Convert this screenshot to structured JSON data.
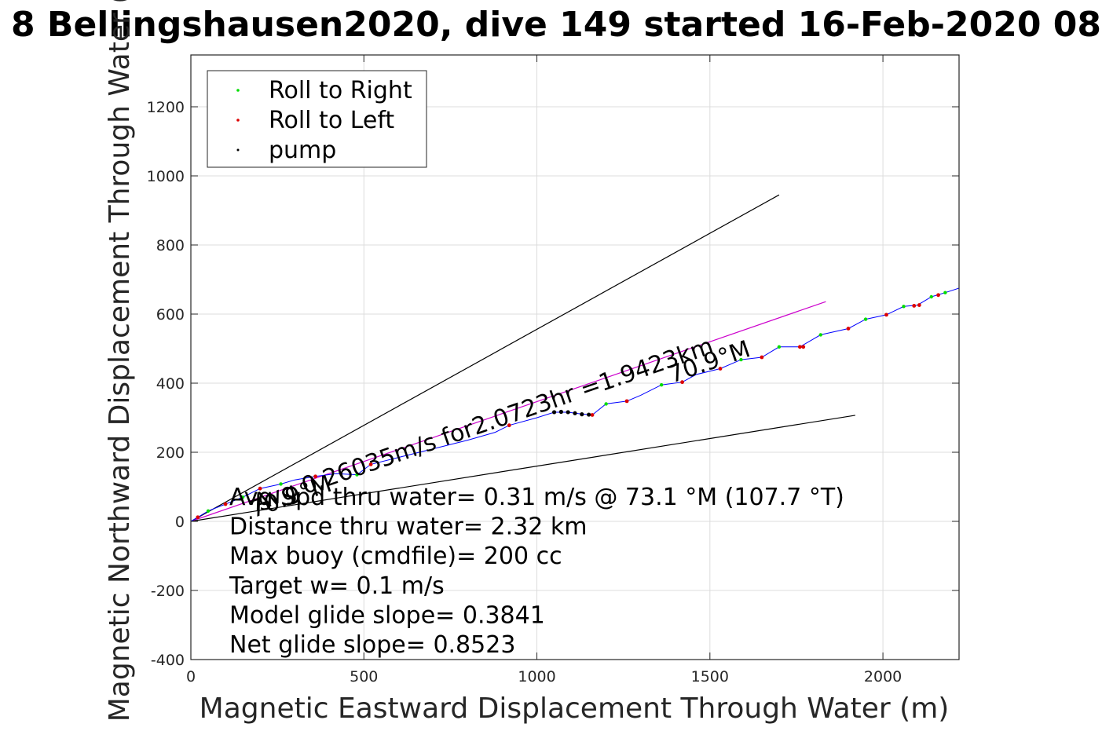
{
  "chart_data": {
    "type": "line",
    "title": "8 Bellingshausen2020, dive 149 started 16-Feb-2020 08",
    "xlabel": "Magnetic Eastward Displacement Through Water (m)",
    "ylabel": "Magnetic Northward Displacement Through Water (",
    "xlim": [
      0,
      2220
    ],
    "ylim": [
      -400,
      1350
    ],
    "xticks": [
      0,
      500,
      1000,
      1500,
      2000
    ],
    "yticks": [
      -400,
      -200,
      0,
      200,
      400,
      600,
      800,
      1000,
      1200
    ],
    "xtick_labels": [
      "0",
      "500",
      "1000",
      "1500",
      "2000"
    ],
    "ytick_labels": [
      "-400",
      "-200",
      "0",
      "200",
      "400",
      "600",
      "800",
      "1000",
      "1200"
    ],
    "grid": true,
    "legend_position": "top-left",
    "legend": [
      {
        "label": "Roll to Right",
        "color": "#00dd00"
      },
      {
        "label": "Roll to Left",
        "color": "#dd0000"
      },
      {
        "label": "pump",
        "color": "#000000"
      }
    ],
    "series": [
      {
        "color": "#0000ff",
        "x": [
          0,
          50,
          100,
          150,
          200,
          260,
          300,
          360,
          420,
          480,
          520,
          600,
          700,
          800,
          880,
          920,
          1000,
          1050,
          1090,
          1120,
          1160,
          1200,
          1260,
          1300,
          1360,
          1420,
          1460,
          1530,
          1590,
          1650,
          1700,
          1760,
          1820,
          1900,
          1950,
          2010,
          2060,
          2100,
          2140,
          2180,
          2220
        ],
        "y": [
          0,
          30,
          50,
          70,
          95,
          108,
          120,
          130,
          138,
          135,
          165,
          185,
          210,
          235,
          258,
          278,
          300,
          316,
          316,
          312,
          308,
          340,
          348,
          365,
          395,
          403,
          425,
          442,
          468,
          475,
          505,
          505,
          540,
          558,
          585,
          598,
          622,
          626,
          650,
          662,
          675
        ]
      }
    ],
    "reference_lines": [
      {
        "color": "#000000",
        "x": [
          0,
          1700
        ],
        "y": [
          0,
          945
        ]
      },
      {
        "color": "#cc00cc",
        "x": [
          0,
          1835
        ],
        "y": [
          0,
          636
        ]
      },
      {
        "color": "#000000",
        "x": [
          0,
          1920
        ],
        "y": [
          0,
          307
        ]
      }
    ],
    "markers": {
      "roll_right": {
        "color": "#00dd00",
        "x": [
          50,
          150,
          260,
          480,
          1200,
          1360,
          1590,
          1700,
          1820,
          1950,
          2060,
          2140,
          2180
        ],
        "y": [
          30,
          70,
          108,
          135,
          340,
          395,
          468,
          505,
          540,
          585,
          622,
          650,
          662
        ]
      },
      "roll_left": {
        "color": "#dd0000",
        "x": [
          20,
          100,
          200,
          360,
          520,
          920,
          1160,
          1260,
          1420,
          1530,
          1650,
          1760,
          1770,
          1900,
          2010,
          2090,
          2105,
          2160
        ],
        "y": [
          12,
          50,
          95,
          130,
          165,
          278,
          308,
          348,
          403,
          442,
          475,
          505,
          505,
          558,
          598,
          624,
          626,
          655
        ]
      },
      "pump": {
        "color": "#000000",
        "x": [
          1050,
          1070,
          1090,
          1110,
          1130,
          1150
        ],
        "y": [
          316,
          317,
          316,
          313,
          310,
          309
        ]
      }
    },
    "annotations": [
      {
        "text": "Avg 0.26035m/s for2.0723hr =1.9423km",
        "x": 190,
        "y": 30,
        "angle_deg": -19.1
      },
      {
        "text": "70.9°M",
        "x": 1390,
        "y": 400,
        "angle_deg": -19.1
      },
      {
        "text": "70.9°M",
        "x": 180,
        "y": 10,
        "angle_deg": -19.1
      }
    ],
    "info_lines": [
      "Avg Spd thru water=  0.31 m/s @  73.1 °M (107.7 °T)",
      "Distance thru water=  2.32 km",
      "Max buoy (cmdfile)= 200 cc",
      "Target w= 0.1 m/s",
      "Model glide slope= 0.3841",
      "Net glide slope= 0.8523"
    ]
  }
}
